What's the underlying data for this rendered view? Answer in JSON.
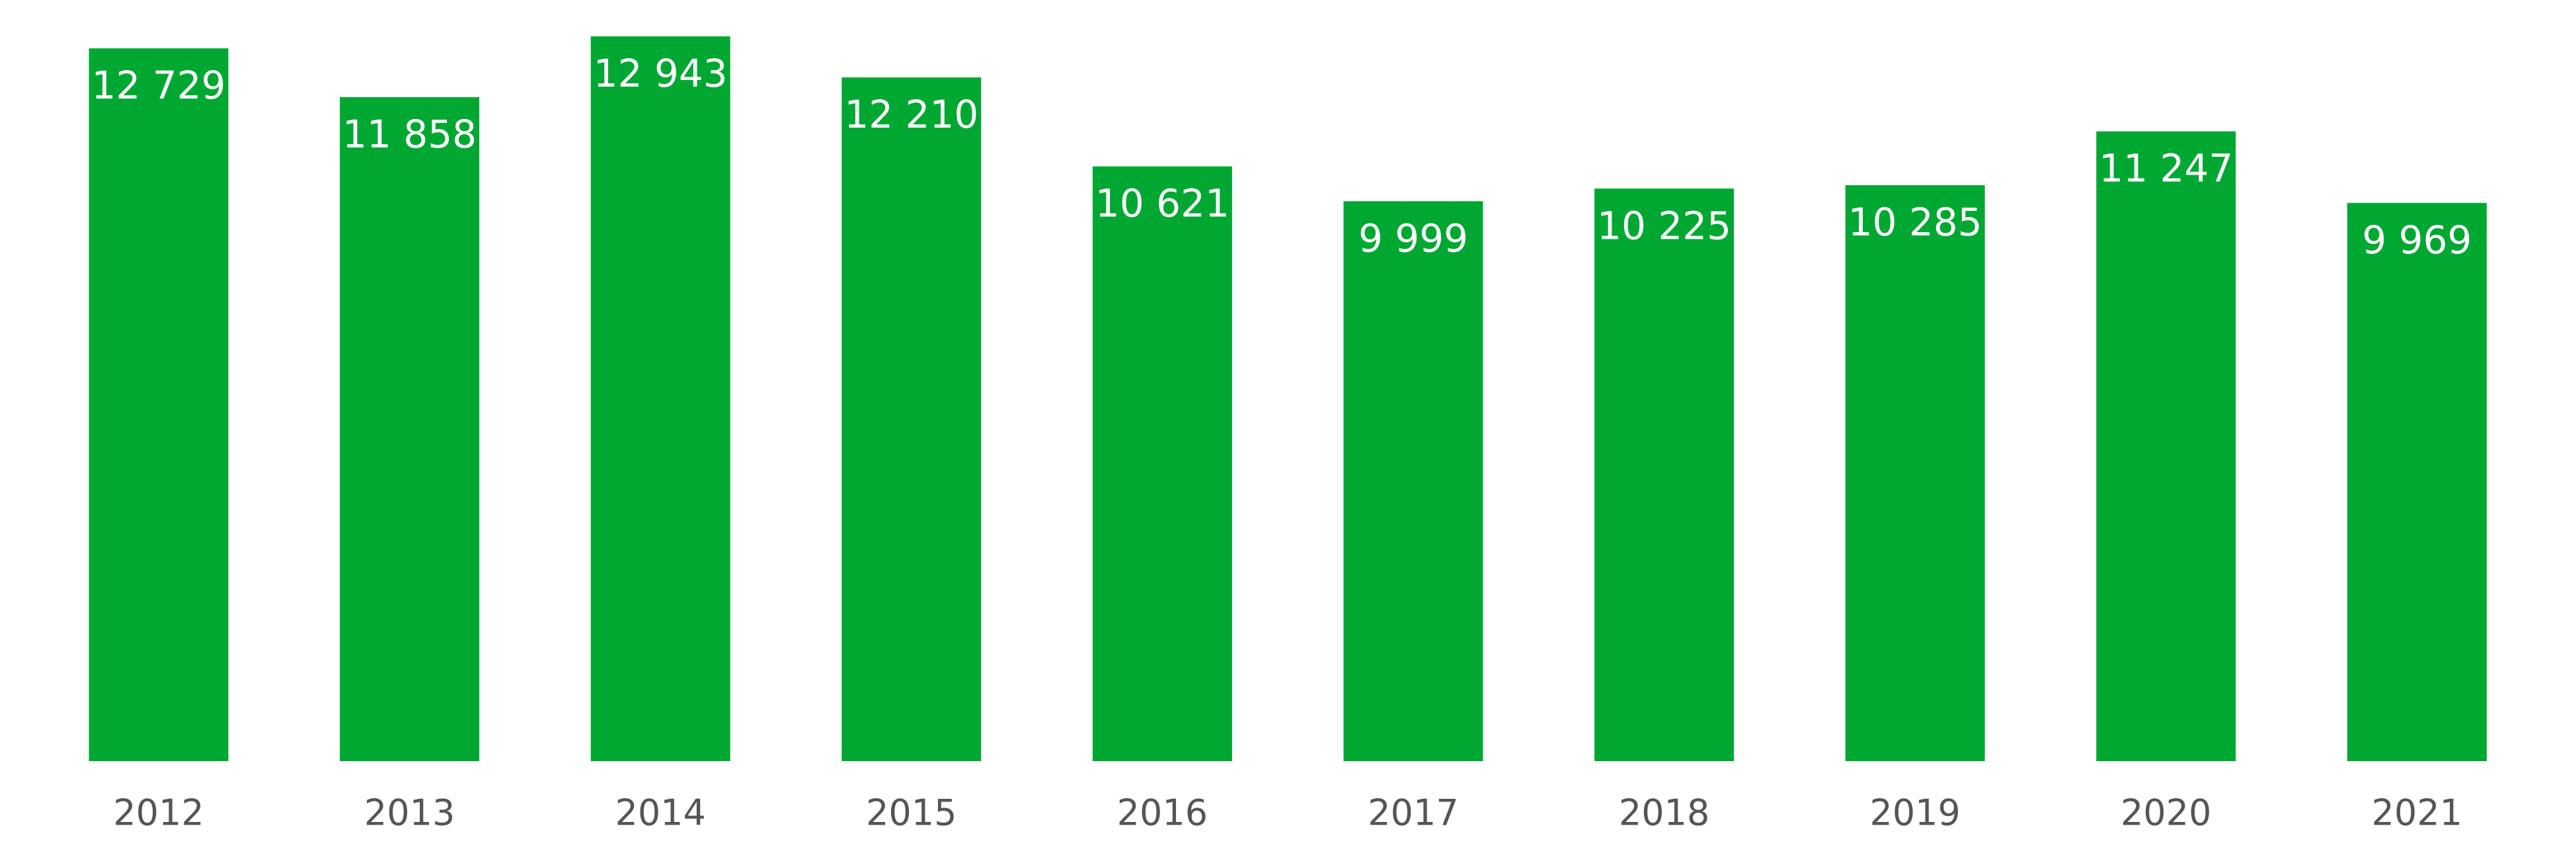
{
  "chart_data": {
    "type": "bar",
    "categories": [
      "2012",
      "2013",
      "2014",
      "2015",
      "2016",
      "2017",
      "2018",
      "2019",
      "2020",
      "2021"
    ],
    "values": [
      12729,
      11858,
      12943,
      12210,
      10621,
      9999,
      10225,
      10285,
      11247,
      9969
    ],
    "value_labels": [
      "12 729",
      "11 858",
      "12 943",
      "12 210",
      "10 621",
      "9 999",
      "10 225",
      "10 285",
      "11 247",
      "9 969"
    ],
    "color": "#00a832"
  }
}
